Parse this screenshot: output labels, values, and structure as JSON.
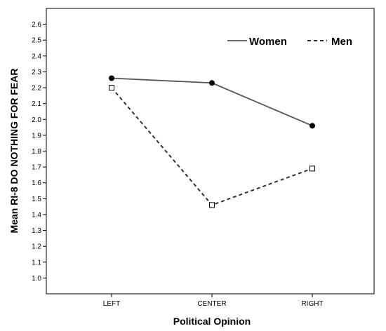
{
  "chart_data": {
    "type": "line",
    "title": "",
    "xlabel": "Political Opinion",
    "ylabel": "Mean RI-8 DO NOTHING FOR FEAR",
    "categories": [
      "LEFT",
      "CENTER",
      "RIGHT"
    ],
    "ylim": [
      0.9,
      2.7
    ],
    "yticks": [
      "1.0",
      "1.1",
      "1.2",
      "1.3",
      "1.4",
      "1.5",
      "1.6",
      "1.7",
      "1.8",
      "1.9",
      "2.0",
      "2.1",
      "2.2",
      "2.3",
      "2.4",
      "2.5",
      "2.6"
    ],
    "grid": false,
    "legend_position": "top-right",
    "series": [
      {
        "name": "Women",
        "values": [
          2.26,
          2.23,
          1.96
        ],
        "line_style": "solid",
        "marker": "filled-circle",
        "color": "#555555"
      },
      {
        "name": "Men",
        "values": [
          2.2,
          1.46,
          1.69
        ],
        "line_style": "dashed",
        "marker": "open-square",
        "color": "#333333"
      }
    ]
  }
}
